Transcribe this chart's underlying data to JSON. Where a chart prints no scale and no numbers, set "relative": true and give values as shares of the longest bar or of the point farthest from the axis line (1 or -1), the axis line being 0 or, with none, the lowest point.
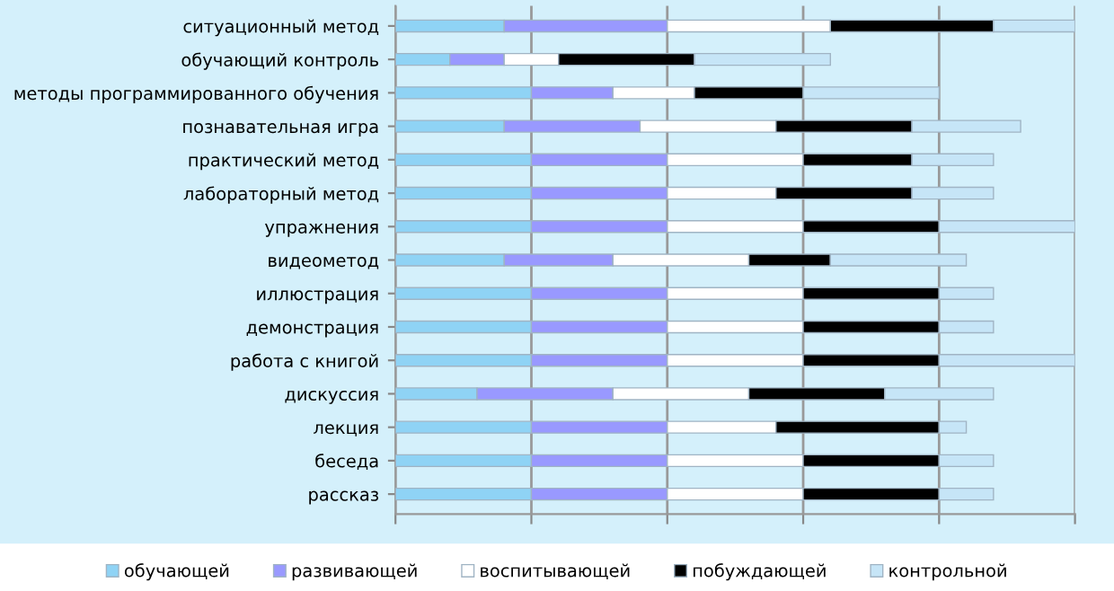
{
  "chart_data": {
    "type": "bar",
    "orientation": "horizontal",
    "stacked": true,
    "relative": true,
    "grid": "x",
    "legend": "bottom",
    "categories": [
      "ситуационный метод",
      "обучающий контроль",
      "методы программированного обучения",
      "познавательная игра",
      "практический метод",
      "лабораторный метод",
      "упражнения",
      "видеометод",
      "иллюстрация",
      "демонстрация",
      "работа с книгой",
      "дискуссия",
      "лекция",
      "беседа",
      "рассказ"
    ],
    "series": [
      {
        "name": "обучающей",
        "color": "#8fd3f5",
        "values": [
          0.16,
          0.08,
          0.2,
          0.16,
          0.2,
          0.2,
          0.2,
          0.16,
          0.2,
          0.2,
          0.2,
          0.12,
          0.2,
          0.2,
          0.2
        ]
      },
      {
        "name": "развивающей",
        "color": "#9999ff",
        "values": [
          0.24,
          0.08,
          0.12,
          0.2,
          0.2,
          0.2,
          0.2,
          0.16,
          0.2,
          0.2,
          0.2,
          0.2,
          0.2,
          0.2,
          0.2
        ]
      },
      {
        "name": "воспитывающей",
        "color": "#ffffff",
        "values": [
          0.24,
          0.08,
          0.12,
          0.2,
          0.2,
          0.16,
          0.2,
          0.2,
          0.2,
          0.2,
          0.2,
          0.2,
          0.16,
          0.2,
          0.2
        ]
      },
      {
        "name": "побуждающей",
        "color": "#000000",
        "values": [
          0.24,
          0.2,
          0.16,
          0.2,
          0.16,
          0.2,
          0.2,
          0.12,
          0.2,
          0.2,
          0.2,
          0.2,
          0.24,
          0.2,
          0.2
        ]
      },
      {
        "name": "контрольной",
        "color": "#c6e5f7",
        "values": [
          0.12,
          0.2,
          0.2,
          0.16,
          0.12,
          0.12,
          0.2,
          0.2,
          0.08,
          0.08,
          0.2,
          0.16,
          0.04,
          0.08,
          0.08
        ]
      }
    ]
  }
}
